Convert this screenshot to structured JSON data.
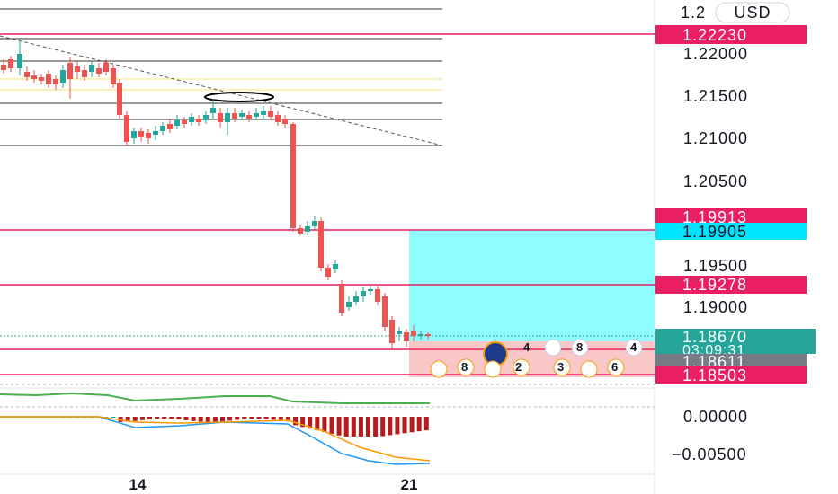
{
  "currency": "USD",
  "price_axis": {
    "labels": [
      "1.22000",
      "1.21500",
      "1.21000",
      "1.20500",
      "1.19500",
      "1.19000"
    ],
    "top_partial": "1.2"
  },
  "indicator_axis": {
    "labels": [
      "0.00000",
      "−0.00500"
    ]
  },
  "time_axis": {
    "labels": [
      "14",
      "21"
    ]
  },
  "price_tags": {
    "r1": {
      "text": "1.22230",
      "color": "#e91e63"
    },
    "r2": {
      "text": "1.19913",
      "color": "#e91e63"
    },
    "entry": {
      "text": "1.19905",
      "color": "#00e5ff"
    },
    "r3": {
      "text": "1.19278",
      "color": "#e91e63"
    },
    "last": {
      "text": "1.18670",
      "countdown": "03:09:31",
      "color": "#26a69a"
    },
    "bid": {
      "text": "1.18611",
      "color": "#787b86"
    },
    "r4": {
      "text": "1.18503",
      "color": "#e91e63"
    }
  },
  "events_row1": [
    "4",
    "8",
    "4"
  ],
  "events_row2": [
    "8",
    "2",
    "3",
    "6"
  ],
  "colors": {
    "up": "#26a69a",
    "down": "#ef5350",
    "level": "#e91e63",
    "target_zone": "#8ffcff",
    "stop_zone": "#f9c7c6",
    "macd_line": "#2196f3",
    "signal_line": "#ff9800",
    "rsi_line": "#4caf50"
  }
}
